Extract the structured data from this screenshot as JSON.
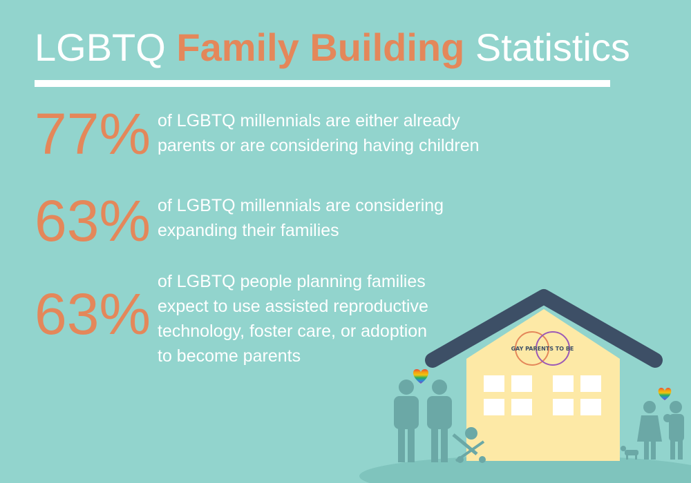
{
  "title": {
    "pre": "LGBTQ",
    "accent": "Family Building",
    "post": "Statistics"
  },
  "stats": [
    {
      "percent": "77%",
      "text": " of LGBTQ millennials are either already\nparents or are considering having children"
    },
    {
      "percent": "63%",
      "text": "of LGBTQ millennials are considering\nexpanding their families"
    },
    {
      "percent": "63%",
      "text": "of LGBTQ people planning families\nexpect to use assisted reproductive\ntechnology, foster care, or adoption\nto become parents"
    }
  ],
  "logo": {
    "text": "GAY PARENTS TO BE"
  },
  "colors": {
    "background": "#92d4cd",
    "accent": "#e4875a",
    "text": "#ffffff",
    "roof": "#3d4f66",
    "house": "#fde9a6",
    "figures": "#6ba8a6"
  },
  "icons": [
    "house-illustration",
    "rainbow-heart-icon",
    "couple-figures",
    "stroller-icon",
    "dog-icon",
    "family-figures"
  ]
}
